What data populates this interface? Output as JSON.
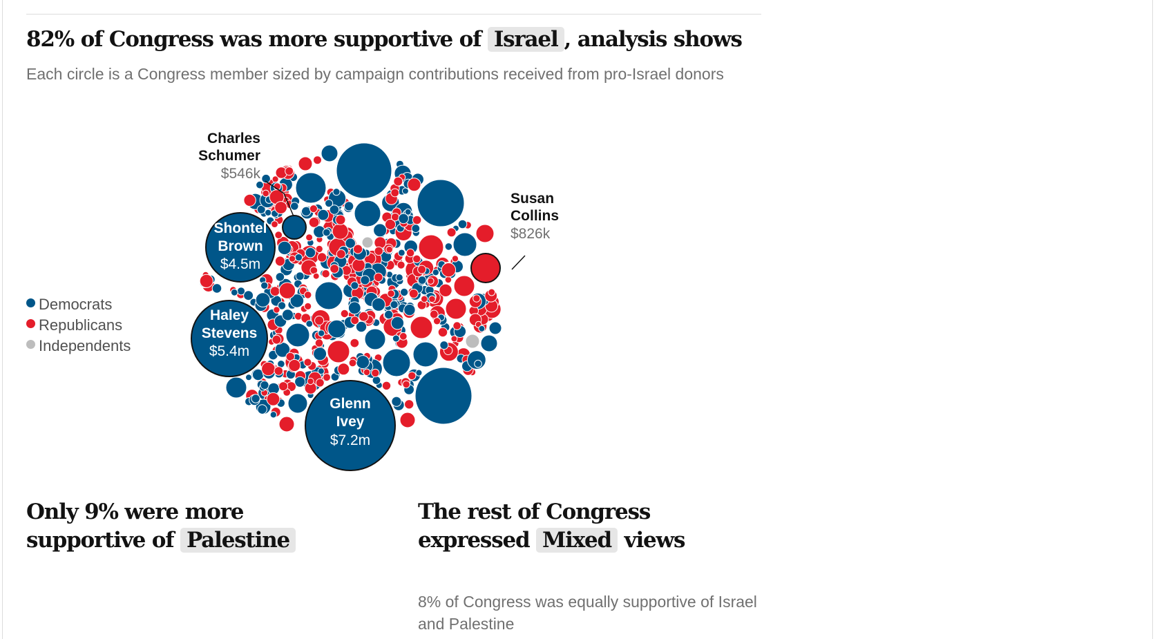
{
  "headline": {
    "before": "82% of Congress was more supportive of",
    "highlight": "Israel",
    "after": ", analysis shows"
  },
  "subhead": "Each circle is a Congress member sized by campaign contributions received from pro-Israel donors",
  "legend": [
    {
      "label": "Democrats",
      "color": "#005689"
    },
    {
      "label": "Republicans",
      "color": "#e41d2a"
    },
    {
      "label": "Independents",
      "color": "#bdbdbd"
    }
  ],
  "chart_data": {
    "type": "packed-bubble",
    "measure": "Campaign contributions received from pro-Israel donors",
    "parties": {
      "Democrats": "#005689",
      "Republicans": "#e41d2a",
      "Independents": "#bdbdbd"
    },
    "labeled_members": [
      {
        "name_lines": [
          "Glenn",
          "Ivey"
        ],
        "value_label": "$7.2m",
        "amount": 7200000,
        "party": "Democrats"
      },
      {
        "name_lines": [
          "Haley",
          "Stevens"
        ],
        "value_label": "$5.4m",
        "amount": 5400000,
        "party": "Democrats"
      },
      {
        "name_lines": [
          "Shontel",
          "Brown"
        ],
        "value_label": "$4.5m",
        "amount": 4500000,
        "party": "Democrats"
      },
      {
        "name_lines": [
          "Susan",
          "Collins"
        ],
        "value_label": "$826k",
        "amount": 826000,
        "party": "Republicans"
      },
      {
        "name_lines": [
          "Charles",
          "Schumer"
        ],
        "value_label": "$546k",
        "amount": 546000,
        "party": "Democrats"
      }
    ]
  },
  "panels": {
    "palestine": {
      "before": "Only 9% were more",
      "line2_before": "supportive of",
      "highlight": "Palestine"
    },
    "mixed": {
      "line1": "The rest of Congress",
      "before": "expressed",
      "highlight": "Mixed",
      "after": "views",
      "note": "8% of Congress was equally supportive of Israel and Palestine"
    }
  }
}
